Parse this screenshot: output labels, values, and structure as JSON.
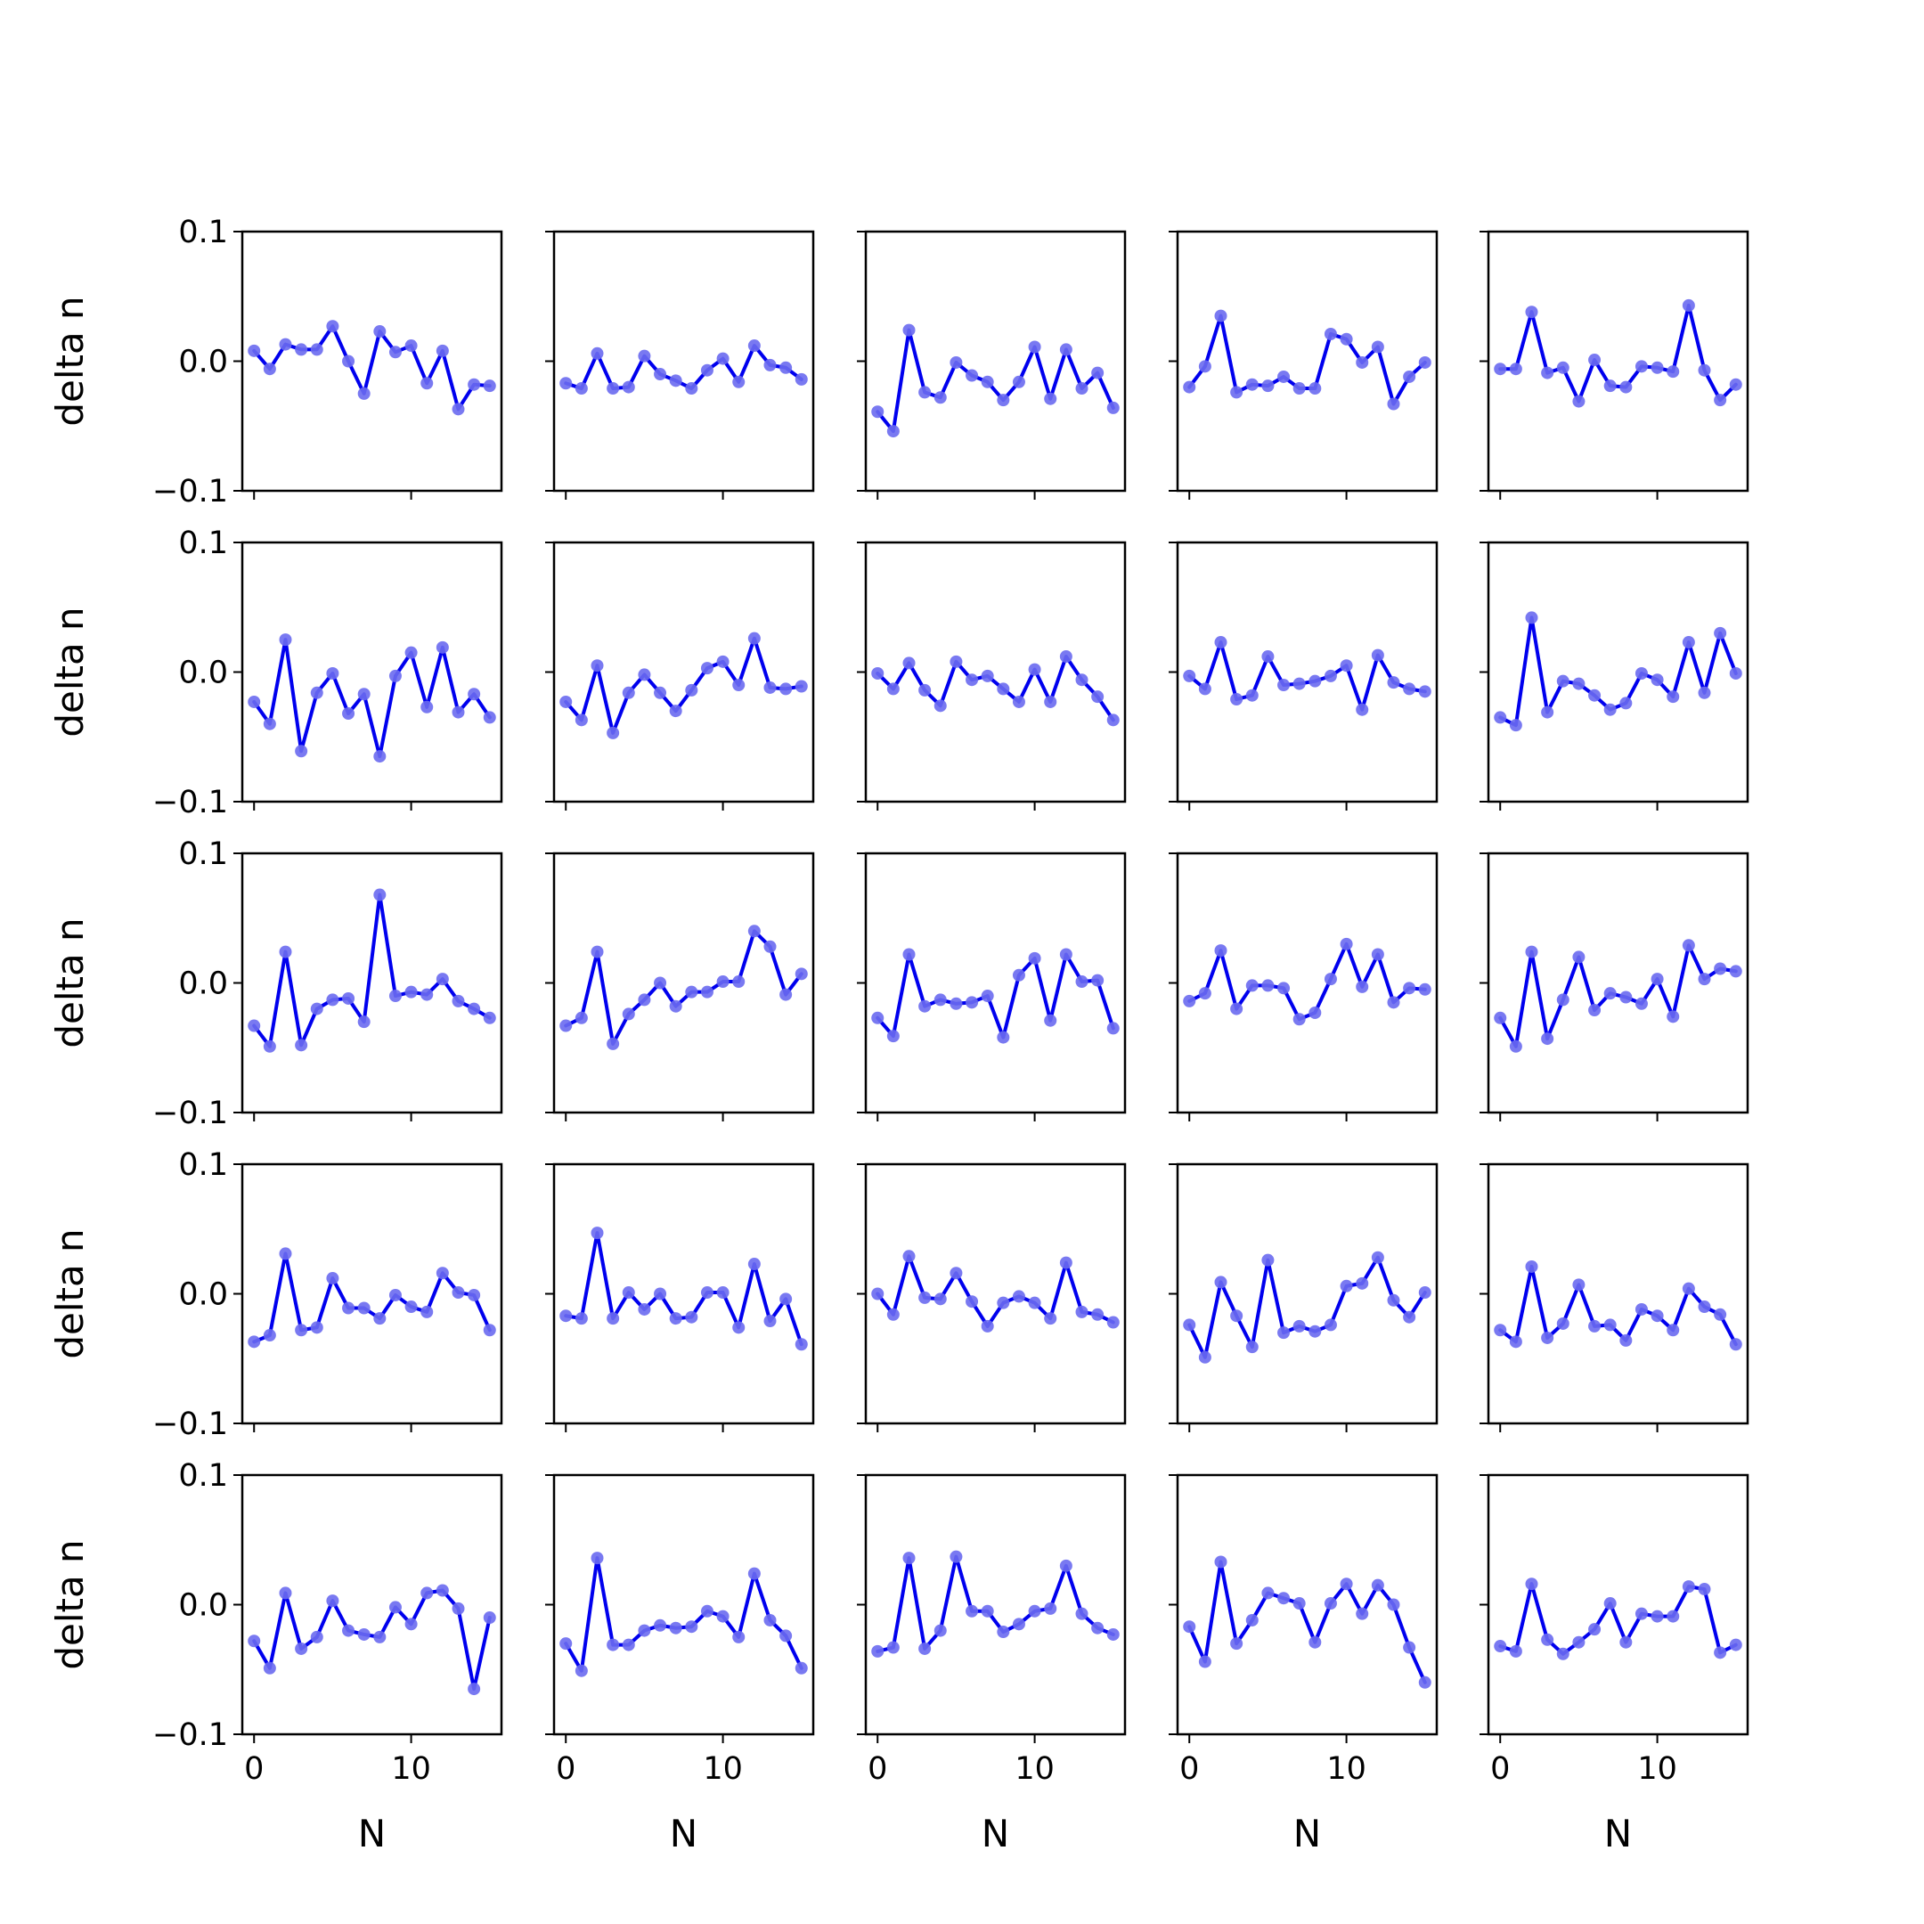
{
  "chart_data": {
    "type": "line",
    "layout": {
      "rows": 5,
      "cols": 5
    },
    "xlabel": "N",
    "ylabel": "delta n",
    "xlim": [
      -0.75,
      15.75
    ],
    "ylim": [
      -0.1,
      0.1
    ],
    "xticks": [
      0,
      10
    ],
    "yticks": [
      -0.1,
      0.0,
      0.1
    ],
    "ytick_labels": [
      "−0.1",
      "0.0",
      "0.1"
    ],
    "xtick_labels": [
      "0",
      "10"
    ],
    "x": [
      0,
      1,
      2,
      3,
      4,
      5,
      6,
      7,
      8,
      9,
      10,
      11,
      12,
      13,
      14,
      15
    ],
    "line_color": "#0000ee",
    "marker_color": "#6a6af0",
    "panels": [
      {
        "values": [
          0.008,
          -0.006,
          0.013,
          0.009,
          0.009,
          0.027,
          0.0,
          -0.025,
          0.023,
          0.007,
          0.012,
          -0.017,
          0.008,
          -0.037,
          -0.018,
          -0.019
        ]
      },
      {
        "values": [
          -0.017,
          -0.021,
          0.006,
          -0.021,
          -0.02,
          0.004,
          -0.01,
          -0.015,
          -0.021,
          -0.007,
          0.002,
          -0.016,
          0.012,
          -0.003,
          -0.005,
          -0.014
        ]
      },
      {
        "values": [
          -0.039,
          -0.054,
          0.024,
          -0.024,
          -0.028,
          -0.001,
          -0.011,
          -0.016,
          -0.03,
          -0.016,
          0.011,
          -0.029,
          0.009,
          -0.021,
          -0.009,
          -0.036
        ]
      },
      {
        "values": [
          -0.02,
          -0.004,
          0.035,
          -0.024,
          -0.018,
          -0.019,
          -0.012,
          -0.021,
          -0.021,
          0.021,
          0.017,
          -0.001,
          0.011,
          -0.033,
          -0.012,
          -0.001
        ]
      },
      {
        "values": [
          -0.006,
          -0.006,
          0.038,
          -0.009,
          -0.005,
          -0.031,
          0.001,
          -0.019,
          -0.02,
          -0.004,
          -0.005,
          -0.008,
          0.043,
          -0.007,
          -0.03,
          -0.018
        ]
      },
      {
        "values": [
          -0.023,
          -0.04,
          0.025,
          -0.061,
          -0.016,
          -0.001,
          -0.032,
          -0.017,
          -0.065,
          -0.003,
          0.015,
          -0.027,
          0.019,
          -0.031,
          -0.017,
          -0.035
        ]
      },
      {
        "values": [
          -0.023,
          -0.037,
          0.005,
          -0.047,
          -0.016,
          -0.002,
          -0.016,
          -0.03,
          -0.014,
          0.003,
          0.008,
          -0.01,
          0.026,
          -0.012,
          -0.013,
          -0.011
        ]
      },
      {
        "values": [
          -0.001,
          -0.013,
          0.007,
          -0.014,
          -0.026,
          0.008,
          -0.006,
          -0.003,
          -0.013,
          -0.023,
          0.002,
          -0.023,
          0.012,
          -0.006,
          -0.019,
          -0.037
        ]
      },
      {
        "values": [
          -0.003,
          -0.013,
          0.023,
          -0.021,
          -0.018,
          0.012,
          -0.01,
          -0.009,
          -0.007,
          -0.003,
          0.005,
          -0.029,
          0.013,
          -0.008,
          -0.013,
          -0.015
        ]
      },
      {
        "values": [
          -0.035,
          -0.041,
          0.042,
          -0.031,
          -0.007,
          -0.009,
          -0.018,
          -0.029,
          -0.024,
          -0.001,
          -0.006,
          -0.019,
          0.023,
          -0.016,
          0.03,
          -0.001
        ]
      },
      {
        "values": [
          -0.033,
          -0.049,
          0.024,
          -0.048,
          -0.02,
          -0.013,
          -0.012,
          -0.03,
          0.068,
          -0.01,
          -0.007,
          -0.009,
          0.003,
          -0.014,
          -0.02,
          -0.027
        ]
      },
      {
        "values": [
          -0.033,
          -0.027,
          0.024,
          -0.047,
          -0.024,
          -0.013,
          0.0,
          -0.018,
          -0.007,
          -0.007,
          0.001,
          0.001,
          0.04,
          0.028,
          -0.009,
          0.007
        ]
      },
      {
        "values": [
          -0.027,
          -0.041,
          0.022,
          -0.018,
          -0.013,
          -0.016,
          -0.015,
          -0.01,
          -0.042,
          0.006,
          0.019,
          -0.029,
          0.022,
          0.001,
          0.002,
          -0.035
        ]
      },
      {
        "values": [
          -0.014,
          -0.008,
          0.025,
          -0.02,
          -0.002,
          -0.002,
          -0.004,
          -0.028,
          -0.023,
          0.003,
          0.03,
          -0.003,
          0.022,
          -0.015,
          -0.004,
          -0.005
        ]
      },
      {
        "values": [
          -0.027,
          -0.049,
          0.024,
          -0.043,
          -0.013,
          0.02,
          -0.021,
          -0.008,
          -0.011,
          -0.016,
          0.003,
          -0.026,
          0.029,
          0.003,
          0.011,
          0.009
        ]
      },
      {
        "values": [
          -0.037,
          -0.032,
          0.031,
          -0.028,
          -0.026,
          0.012,
          -0.011,
          -0.011,
          -0.019,
          -0.001,
          -0.01,
          -0.014,
          0.016,
          0.001,
          -0.001,
          -0.028
        ]
      },
      {
        "values": [
          -0.017,
          -0.019,
          0.047,
          -0.019,
          0.001,
          -0.012,
          0.0,
          -0.019,
          -0.018,
          0.001,
          0.001,
          -0.026,
          0.023,
          -0.021,
          -0.004,
          -0.039
        ]
      },
      {
        "values": [
          0.0,
          -0.016,
          0.029,
          -0.003,
          -0.004,
          0.016,
          -0.006,
          -0.025,
          -0.007,
          -0.002,
          -0.007,
          -0.019,
          0.024,
          -0.014,
          -0.016,
          -0.022
        ]
      },
      {
        "values": [
          -0.024,
          -0.049,
          0.009,
          -0.017,
          -0.041,
          0.026,
          -0.03,
          -0.025,
          -0.029,
          -0.024,
          0.006,
          0.008,
          0.028,
          -0.005,
          -0.018,
          0.001
        ]
      },
      {
        "values": [
          -0.028,
          -0.037,
          0.021,
          -0.034,
          -0.023,
          0.007,
          -0.025,
          -0.024,
          -0.036,
          -0.012,
          -0.017,
          -0.028,
          0.004,
          -0.01,
          -0.016,
          -0.039
        ]
      },
      {
        "values": [
          -0.028,
          -0.049,
          0.009,
          -0.034,
          -0.025,
          0.003,
          -0.02,
          -0.023,
          -0.025,
          -0.002,
          -0.015,
          0.009,
          0.011,
          -0.003,
          -0.065,
          -0.01
        ]
      },
      {
        "values": [
          -0.03,
          -0.051,
          0.036,
          -0.031,
          -0.031,
          -0.02,
          -0.016,
          -0.018,
          -0.017,
          -0.005,
          -0.009,
          -0.025,
          0.024,
          -0.012,
          -0.024,
          -0.049
        ]
      },
      {
        "values": [
          -0.036,
          -0.033,
          0.036,
          -0.034,
          -0.02,
          0.037,
          -0.005,
          -0.005,
          -0.021,
          -0.015,
          -0.005,
          -0.003,
          0.03,
          -0.007,
          -0.018,
          -0.023
        ]
      },
      {
        "values": [
          -0.017,
          -0.044,
          0.033,
          -0.03,
          -0.012,
          0.009,
          0.005,
          0.001,
          -0.029,
          0.001,
          0.016,
          -0.007,
          0.015,
          0.0,
          -0.033,
          -0.06
        ]
      },
      {
        "values": [
          -0.032,
          -0.036,
          0.016,
          -0.027,
          -0.038,
          -0.029,
          -0.019,
          0.001,
          -0.029,
          -0.007,
          -0.009,
          -0.009,
          0.014,
          0.012,
          -0.037,
          -0.031
        ]
      }
    ]
  }
}
